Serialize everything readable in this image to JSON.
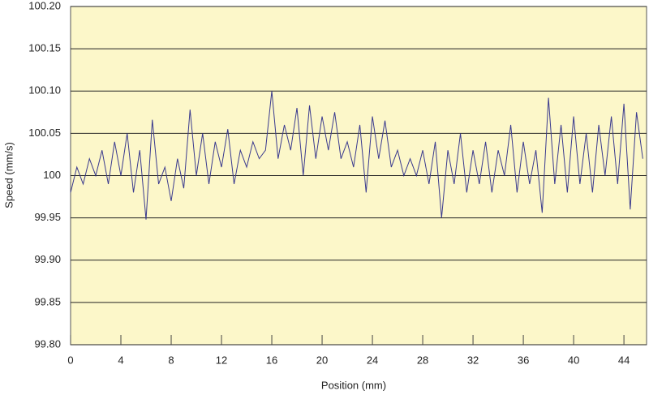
{
  "chart_data": {
    "type": "line",
    "xlabel": "Position (mm)",
    "ylabel": "Speed (mm/s)",
    "x": [
      0,
      0.5,
      1,
      1.5,
      2,
      2.5,
      3,
      3.5,
      4,
      4.5,
      5,
      5.5,
      6,
      6.5,
      7,
      7.5,
      8,
      8.5,
      9,
      9.5,
      10,
      10.5,
      11,
      11.5,
      12,
      12.5,
      13,
      13.5,
      14,
      14.5,
      15,
      15.5,
      16,
      16.5,
      17,
      17.5,
      18,
      18.5,
      19,
      19.5,
      20,
      20.5,
      21,
      21.5,
      22,
      22.5,
      23,
      23.5,
      24,
      24.5,
      25,
      25.5,
      26,
      26.5,
      27,
      27.5,
      28,
      28.5,
      29,
      29.5,
      30,
      30.5,
      31,
      31.5,
      32,
      32.5,
      33,
      33.5,
      34,
      34.5,
      35,
      35.5,
      36,
      36.5,
      37,
      37.5,
      38,
      38.5,
      39,
      39.5,
      40,
      40.5,
      41,
      41.5,
      42,
      42.5,
      43,
      43.5,
      44,
      44.5,
      45,
      45.5
    ],
    "series": [
      {
        "name": "Speed",
        "color": "#3a3a8e",
        "values": [
          99.98,
          100.01,
          99.99,
          100.02,
          100.0,
          100.03,
          99.99,
          100.04,
          100.0,
          100.05,
          99.98,
          100.03,
          99.948,
          100.066,
          99.99,
          100.01,
          99.97,
          100.02,
          99.985,
          100.078,
          100.0,
          100.05,
          99.99,
          100.04,
          100.01,
          100.055,
          99.99,
          100.03,
          100.01,
          100.04,
          100.02,
          100.03,
          100.1,
          100.02,
          100.06,
          100.03,
          100.08,
          100.0,
          100.083,
          100.02,
          100.07,
          100.03,
          100.075,
          100.02,
          100.04,
          100.01,
          100.06,
          99.98,
          100.07,
          100.02,
          100.065,
          100.01,
          100.03,
          100.0,
          100.02,
          100.0,
          100.03,
          99.99,
          100.04,
          99.95,
          100.03,
          99.99,
          100.05,
          99.98,
          100.03,
          99.99,
          100.04,
          99.98,
          100.03,
          100.0,
          100.06,
          99.98,
          100.04,
          99.99,
          100.03,
          99.956,
          100.092,
          99.99,
          100.06,
          99.98,
          100.07,
          99.99,
          100.05,
          99.98,
          100.06,
          100.0,
          100.07,
          99.99,
          100.085,
          99.96,
          100.075,
          100.02
        ]
      }
    ],
    "xlim": [
      0,
      45.8
    ],
    "xticks": [
      0,
      4,
      8,
      12,
      16,
      20,
      24,
      28,
      32,
      36,
      40,
      44
    ],
    "ylim": [
      99.8,
      100.2
    ],
    "yticks": [
      {
        "value": 99.8,
        "label": "99.80"
      },
      99.85,
      {
        "value": 99.9,
        "label": "99.90"
      },
      99.95,
      100,
      {
        "value": 100.05,
        "label": "100.05"
      },
      {
        "value": 100.1,
        "label": "100.10"
      },
      {
        "value": 100.15,
        "label": "100.15"
      },
      {
        "value": 100.2,
        "label": "100.20"
      }
    ],
    "grid": true,
    "background": "#fcf7c9"
  }
}
